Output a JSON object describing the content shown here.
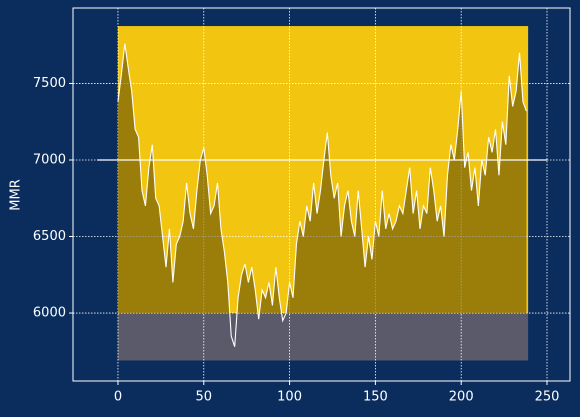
{
  "chart_data": {
    "type": "line",
    "ylabel": "MMR",
    "x": [
      0,
      2,
      4,
      6,
      8,
      10,
      12,
      14,
      16,
      18,
      20,
      22,
      24,
      26,
      28,
      30,
      32,
      34,
      36,
      38,
      40,
      42,
      44,
      46,
      48,
      50,
      52,
      54,
      56,
      58,
      60,
      62,
      64,
      66,
      68,
      70,
      72,
      74,
      76,
      78,
      80,
      82,
      84,
      86,
      88,
      90,
      92,
      94,
      96,
      98,
      100,
      102,
      104,
      106,
      108,
      110,
      112,
      114,
      116,
      118,
      120,
      122,
      124,
      126,
      128,
      130,
      132,
      134,
      136,
      138,
      140,
      142,
      144,
      146,
      148,
      150,
      152,
      154,
      156,
      158,
      160,
      162,
      164,
      166,
      168,
      170,
      172,
      174,
      176,
      178,
      180,
      182,
      184,
      186,
      188,
      190,
      192,
      194,
      196,
      198,
      200,
      202,
      204,
      206,
      208,
      210,
      212,
      214,
      216,
      218,
      220,
      222,
      224,
      226,
      228,
      230,
      232,
      234,
      236,
      238
    ],
    "series": [
      {
        "color": "#ffffff",
        "values": [
          7380,
          7560,
          7760,
          7600,
          7450,
          7200,
          7150,
          6800,
          6700,
          6950,
          7100,
          6750,
          6700,
          6500,
          6300,
          6550,
          6200,
          6450,
          6500,
          6600,
          6850,
          6650,
          6550,
          6800,
          7000,
          7080,
          6900,
          6650,
          6700,
          6850,
          6550,
          6400,
          6200,
          5850,
          5780,
          6100,
          6250,
          6320,
          6200,
          6300,
          6150,
          5960,
          6150,
          6100,
          6200,
          6050,
          6300,
          6100,
          5950,
          6000,
          6200,
          6100,
          6450,
          6600,
          6500,
          6700,
          6600,
          6850,
          6650,
          6800,
          7000,
          7180,
          6900,
          6750,
          6850,
          6500,
          6700,
          6800,
          6600,
          6500,
          6800,
          6550,
          6300,
          6500,
          6350,
          6600,
          6500,
          6800,
          6550,
          6650,
          6550,
          6600,
          6700,
          6650,
          6800,
          6950,
          6650,
          6800,
          6550,
          6700,
          6650,
          6950,
          6800,
          6600,
          6700,
          6500,
          6900,
          7100,
          7000,
          7200,
          7450,
          6950,
          7050,
          6800,
          6950,
          6700,
          7000,
          6900,
          7150,
          7050,
          7200,
          6900,
          7250,
          7100,
          7550,
          7350,
          7450,
          7700,
          7380,
          7320
        ]
      }
    ],
    "bands": [
      {
        "x": [
          0,
          239
        ],
        "y": [
          6000,
          7875
        ],
        "color": "#f2c511"
      },
      {
        "x": [
          0,
          239
        ],
        "y": [
          5690,
          6000
        ],
        "color": "#5a5a6a"
      }
    ],
    "area_color": "rgba(0,0,0,0.36)",
    "hline": {
      "y": 7000,
      "x": [
        -12,
        250
      ],
      "color": "#ffffff"
    },
    "xlim": [
      -26.2,
      263.4
    ],
    "ylim": [
      5556,
      7993
    ],
    "xticks": [
      0,
      50,
      100,
      150,
      200,
      250
    ],
    "yticks": [
      6000,
      6500,
      7000,
      7500
    ],
    "grid": true,
    "background": "#0b2d5e"
  }
}
